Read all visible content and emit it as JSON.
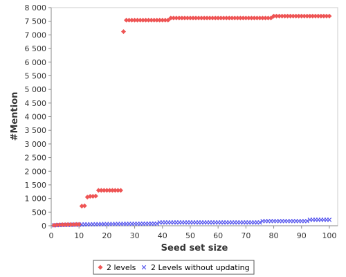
{
  "chart_data": {
    "type": "scatter",
    "title": "",
    "xlabel": "Seed set size",
    "ylabel": "#Mention",
    "xlim": [
      0,
      103
    ],
    "ylim": [
      0,
      8000
    ],
    "xticks": [
      0,
      10,
      20,
      30,
      40,
      50,
      60,
      70,
      80,
      90,
      100
    ],
    "yticks": [
      0,
      500,
      1000,
      1500,
      2000,
      2500,
      3000,
      3500,
      4000,
      4500,
      5000,
      5500,
      6000,
      6500,
      7000,
      7500,
      8000
    ],
    "ytick_labels": [
      "0",
      "500",
      "1 000",
      "1 500",
      "2 000",
      "2 500",
      "3 000",
      "3 500",
      "4 000",
      "4 500",
      "5 000",
      "5 500",
      "6 000",
      "6 500",
      "7 000",
      "7 500",
      "8 000"
    ],
    "grid": false,
    "legend_position": "bottom",
    "series": [
      {
        "name": "2 levels",
        "marker": "diamond",
        "color": "#ee5555",
        "x": [
          1,
          2,
          3,
          4,
          5,
          6,
          7,
          8,
          9,
          10,
          11,
          12,
          13,
          14,
          15,
          16,
          17,
          18,
          19,
          20,
          21,
          22,
          23,
          24,
          25,
          26,
          27,
          28,
          29,
          30,
          31,
          32,
          33,
          34,
          35,
          36,
          37,
          38,
          39,
          40,
          41,
          42,
          43,
          44,
          45,
          46,
          47,
          48,
          49,
          50,
          51,
          52,
          53,
          54,
          55,
          56,
          57,
          58,
          59,
          60,
          61,
          62,
          63,
          64,
          65,
          66,
          67,
          68,
          69,
          70,
          71,
          72,
          73,
          74,
          75,
          76,
          77,
          78,
          79,
          80,
          81,
          82,
          83,
          84,
          85,
          86,
          87,
          88,
          89,
          90,
          91,
          92,
          93,
          94,
          95,
          96,
          97,
          98,
          99,
          100
        ],
        "y": [
          20,
          30,
          35,
          40,
          40,
          45,
          45,
          45,
          50,
          50,
          720,
          730,
          1050,
          1080,
          1080,
          1090,
          1300,
          1300,
          1300,
          1300,
          1300,
          1300,
          1300,
          1300,
          1300,
          7120,
          7540,
          7540,
          7540,
          7540,
          7540,
          7540,
          7540,
          7540,
          7540,
          7540,
          7540,
          7540,
          7540,
          7540,
          7540,
          7540,
          7620,
          7620,
          7620,
          7620,
          7620,
          7620,
          7620,
          7620,
          7620,
          7620,
          7620,
          7620,
          7620,
          7620,
          7620,
          7620,
          7620,
          7620,
          7620,
          7620,
          7620,
          7620,
          7620,
          7620,
          7620,
          7620,
          7620,
          7620,
          7620,
          7620,
          7620,
          7620,
          7620,
          7620,
          7620,
          7620,
          7620,
          7690,
          7690,
          7690,
          7690,
          7690,
          7690,
          7690,
          7690,
          7690,
          7690,
          7690,
          7690,
          7690,
          7690,
          7690,
          7690,
          7690,
          7690,
          7690,
          7690,
          7690
        ]
      },
      {
        "name": "2 Levels without updating",
        "marker": "x",
        "color": "#5555ee",
        "x": [
          1,
          2,
          3,
          4,
          5,
          6,
          7,
          8,
          9,
          10,
          11,
          12,
          13,
          14,
          15,
          16,
          17,
          18,
          19,
          20,
          21,
          22,
          23,
          24,
          25,
          26,
          27,
          28,
          29,
          30,
          31,
          32,
          33,
          34,
          35,
          36,
          37,
          38,
          39,
          40,
          41,
          42,
          43,
          44,
          45,
          46,
          47,
          48,
          49,
          50,
          51,
          52,
          53,
          54,
          55,
          56,
          57,
          58,
          59,
          60,
          61,
          62,
          63,
          64,
          65,
          66,
          67,
          68,
          69,
          70,
          71,
          72,
          73,
          74,
          75,
          76,
          77,
          78,
          79,
          80,
          81,
          82,
          83,
          84,
          85,
          86,
          87,
          88,
          89,
          90,
          91,
          92,
          93,
          94,
          95,
          96,
          97,
          98,
          99,
          100
        ],
        "y": [
          15,
          20,
          25,
          28,
          30,
          32,
          35,
          38,
          40,
          42,
          45,
          50,
          50,
          52,
          55,
          55,
          58,
          60,
          60,
          62,
          62,
          65,
          65,
          68,
          68,
          70,
          70,
          72,
          72,
          75,
          75,
          75,
          78,
          78,
          80,
          80,
          80,
          80,
          120,
          120,
          120,
          120,
          120,
          120,
          120,
          120,
          120,
          120,
          120,
          120,
          120,
          120,
          120,
          120,
          120,
          120,
          120,
          120,
          120,
          120,
          120,
          120,
          120,
          120,
          120,
          120,
          120,
          120,
          120,
          120,
          120,
          120,
          120,
          120,
          120,
          170,
          170,
          170,
          170,
          170,
          170,
          170,
          170,
          170,
          170,
          170,
          170,
          170,
          170,
          170,
          170,
          170,
          220,
          220,
          220,
          220,
          220,
          220,
          220,
          220
        ]
      }
    ]
  }
}
